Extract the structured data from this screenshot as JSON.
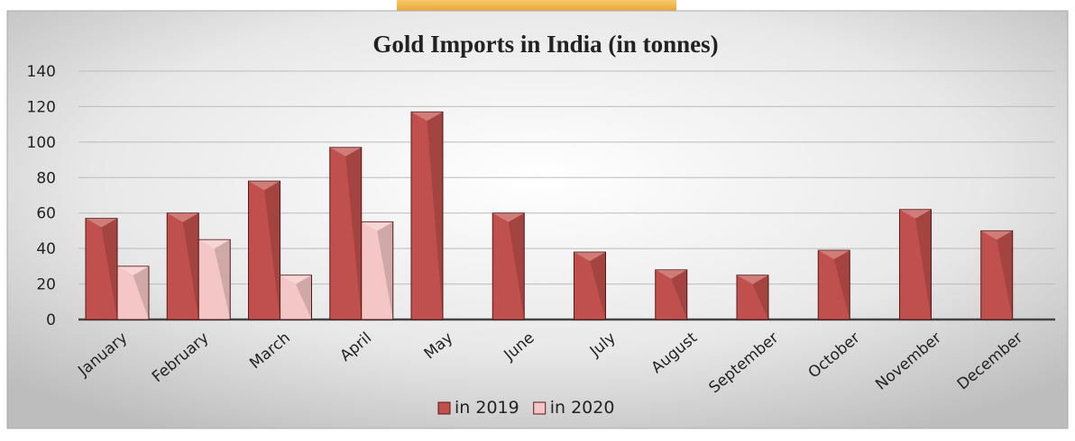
{
  "chart_data": {
    "type": "bar",
    "title": "Gold Imports in India (in tonnes)",
    "categories": [
      "January",
      "February",
      "March",
      "April",
      "May",
      "June",
      "July",
      "August",
      "September",
      "October",
      "November",
      "December"
    ],
    "series": [
      {
        "name": "in 2019",
        "color": "#c0504d",
        "values": [
          57,
          60,
          78,
          97,
          117,
          60,
          38,
          28,
          25,
          39,
          62,
          50
        ]
      },
      {
        "name": "in 2020",
        "color": "#f4c7c6",
        "values": [
          30,
          45,
          25,
          55,
          null,
          null,
          null,
          null,
          null,
          null,
          null,
          null
        ]
      }
    ],
    "ylim": [
      0,
      140
    ],
    "yticks": [
      0,
      20,
      40,
      60,
      80,
      100,
      120,
      140
    ],
    "grid": true,
    "legend": "bottom"
  }
}
